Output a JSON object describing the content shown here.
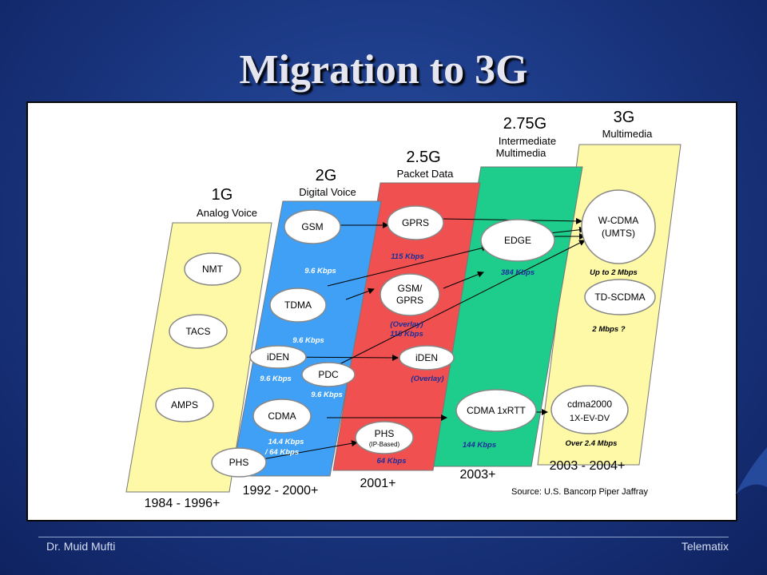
{
  "slide": {
    "title": "Migration to 3G",
    "footer_left": "Dr. Muid Mufti",
    "footer_right": "Telematix"
  },
  "colors": {
    "bg": "#1c3a86",
    "gen1": "#fdf9a6",
    "gen2": "#3fa0f5",
    "gen25": "#f05050",
    "gen275": "#1ecc8c",
    "gen3": "#fdf9a6"
  },
  "generations": [
    {
      "key": "g1",
      "name": "1G",
      "subtitle": "Analog Voice",
      "years": "1984 - 1996+"
    },
    {
      "key": "g2",
      "name": "2G",
      "subtitle": "Digital Voice",
      "years": "1992 - 2000+"
    },
    {
      "key": "g25",
      "name": "2.5G",
      "subtitle": "Packet Data",
      "years": "2001+"
    },
    {
      "key": "g275",
      "name": "2.75G",
      "subtitle_line1": "Intermediate",
      "subtitle_line2": "Multimedia",
      "years": "2003+"
    },
    {
      "key": "g3",
      "name": "3G",
      "subtitle": "Multimedia",
      "years": "2003 - 2004+"
    }
  ],
  "technologies": {
    "nmt": "NMT",
    "tacs": "TACS",
    "amps": "AMPS",
    "gsm": "GSM",
    "tdma": "TDMA",
    "iden2": "iDEN",
    "pdc": "PDC",
    "cdma": "CDMA",
    "phs2": "PHS",
    "gprs": "GPRS",
    "gsm_gprs_1": "GSM/",
    "gsm_gprs_2": "GPRS",
    "iden25": "iDEN",
    "phs25": "PHS",
    "phs25_sub": "(IP-Based)",
    "edge": "EDGE",
    "cdma1x": "CDMA 1xRTT",
    "wcdma_1": "W-CDMA",
    "wcdma_2": "(UMTS)",
    "tdscdma": "TD-SCDMA",
    "cdma2000_1": "cdma2000",
    "cdma2000_2": "1X-EV-DV"
  },
  "speeds": {
    "gsm": "9.6 Kbps",
    "tdma": "9.6 Kbps",
    "iden": "9.6 Kbps",
    "pdc": "9.6 Kbps",
    "cdma_1": "14.4 Kbps",
    "cdma_2": "/ 64 Kbps",
    "gprs": "115 Kbps",
    "gsm_gprs_1": "(Overlay)",
    "gsm_gprs_2": "115 Kbps",
    "iden_overlay": "(Overlay)",
    "phs": "64 Kbps",
    "edge": "384 Kbps",
    "cdma1x": "144 Kbps",
    "wcdma": "Up to 2 Mbps",
    "tdscdma": "2 Mbps ?",
    "cdma2000": "Over 2.4 Mbps"
  },
  "source": "Source: U.S. Bancorp Piper Jaffray"
}
